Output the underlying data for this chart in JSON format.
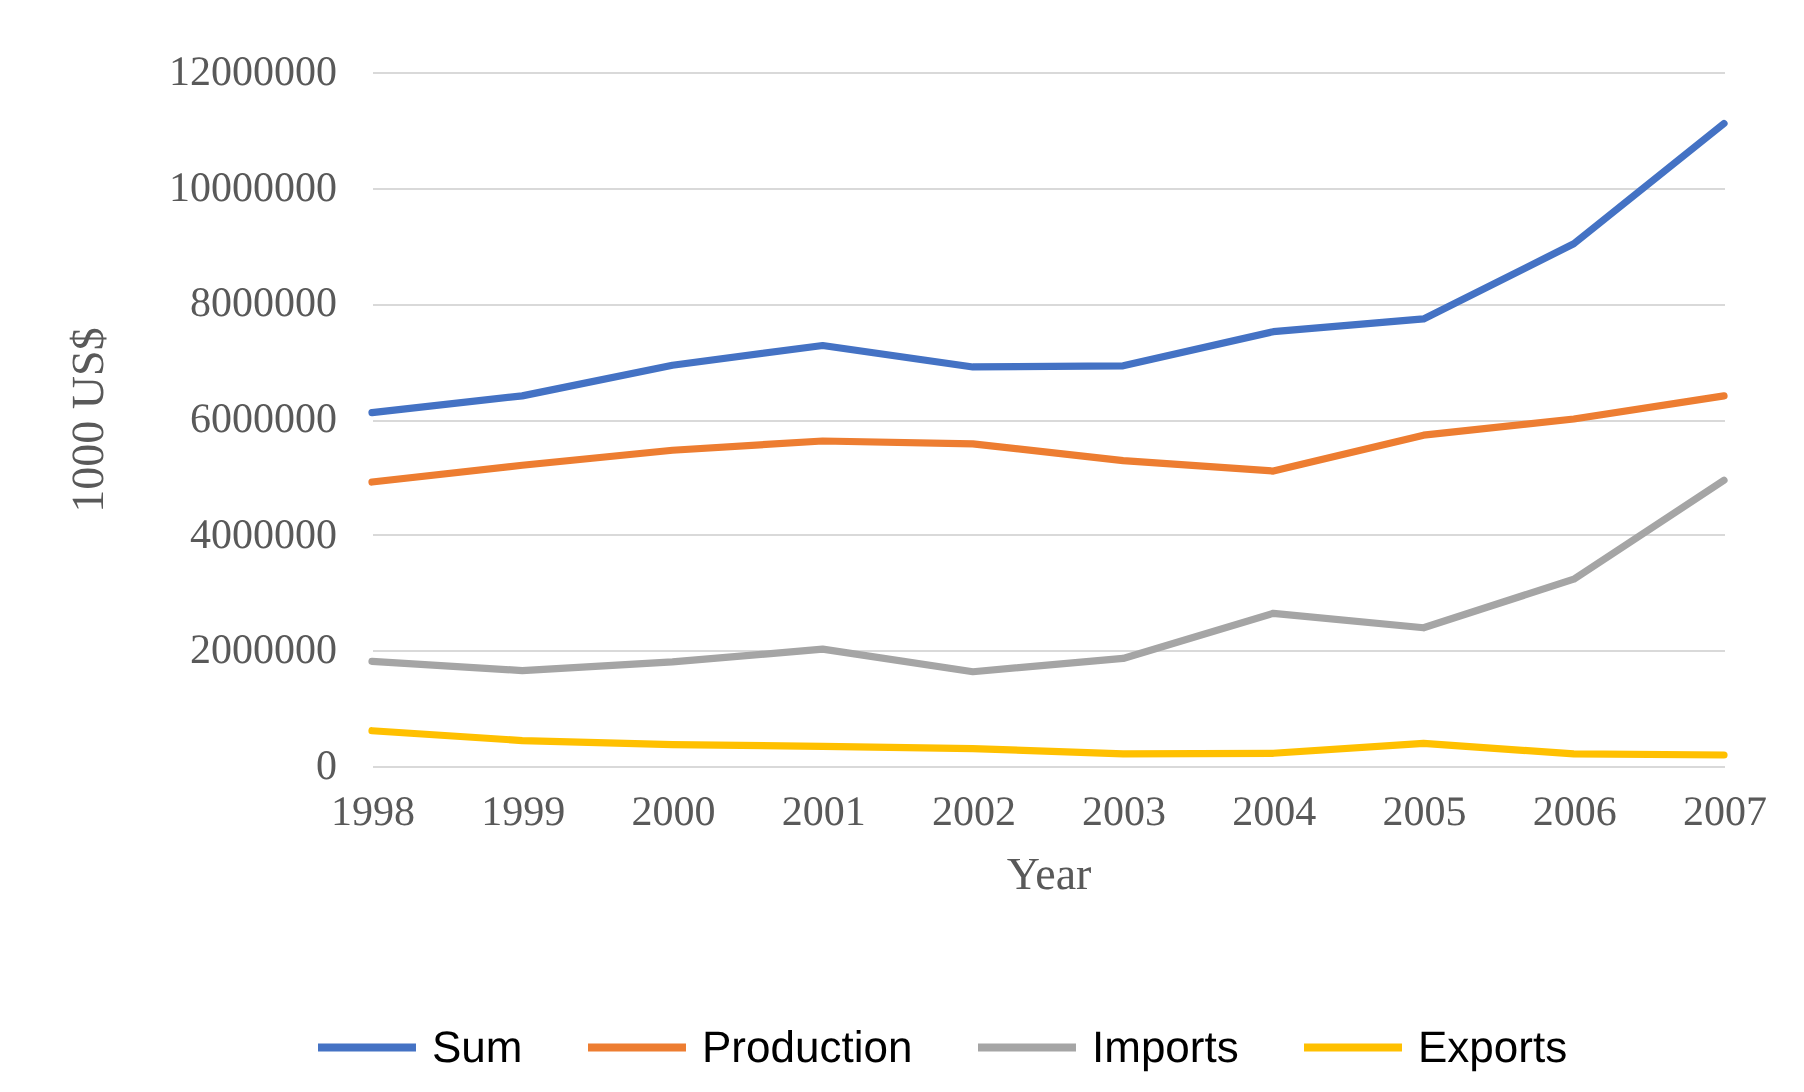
{
  "chart_data": {
    "type": "line",
    "xlabel": "Year",
    "ylabel": "1000 US$",
    "categories": [
      "1998",
      "1999",
      "2000",
      "2001",
      "2002",
      "2003",
      "2004",
      "2005",
      "2006",
      "2007"
    ],
    "ylim": [
      0,
      12000000
    ],
    "yticks": [
      0,
      2000000,
      4000000,
      6000000,
      8000000,
      10000000,
      12000000
    ],
    "grid": "y",
    "legend": "bottom",
    "marker": "none",
    "line_style": "solid",
    "series": [
      {
        "name": "Sum",
        "color": "#4472c4",
        "values": [
          6110000,
          6400000,
          6930000,
          7270000,
          6900000,
          6920000,
          7510000,
          7730000,
          9030000,
          11110000
        ]
      },
      {
        "name": "Production",
        "color": "#ed7d31",
        "values": [
          4910000,
          5200000,
          5460000,
          5620000,
          5570000,
          5280000,
          5100000,
          5720000,
          6000000,
          6400000
        ]
      },
      {
        "name": "Imports",
        "color": "#a5a5a5",
        "values": [
          1810000,
          1650000,
          1800000,
          2020000,
          1630000,
          1860000,
          2640000,
          2390000,
          3230000,
          4940000
        ]
      },
      {
        "name": "Exports",
        "color": "#ffc000",
        "values": [
          610000,
          440000,
          370000,
          340000,
          300000,
          210000,
          220000,
          390000,
          210000,
          190000
        ]
      }
    ]
  }
}
